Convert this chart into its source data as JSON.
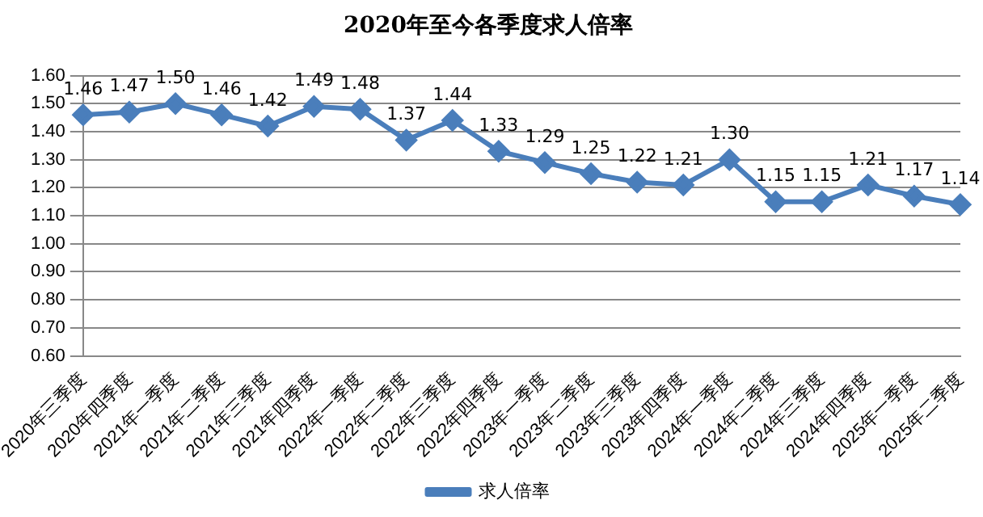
{
  "chart_data": {
    "type": "line",
    "title": "2020年至今各季度求人倍率",
    "categories": [
      "2020年三季度",
      "2020年四季度",
      "2021年一季度",
      "2021年二季度",
      "2021年三季度",
      "2021年四季度",
      "2022年一季度",
      "2022年二季度",
      "2022年三季度",
      "2022年四季度",
      "2023年一季度",
      "2023年二季度",
      "2023年三季度",
      "2023年四季度",
      "2024年一季度",
      "2024年二季度",
      "2024年三季度",
      "2024年四季度",
      "2025年一季度",
      "2025年二季度"
    ],
    "series": [
      {
        "name": "求人倍率",
        "color": "#4a7ebb",
        "values": [
          1.46,
          1.47,
          1.5,
          1.46,
          1.42,
          1.49,
          1.48,
          1.37,
          1.44,
          1.33,
          1.29,
          1.25,
          1.22,
          1.21,
          1.3,
          1.15,
          1.15,
          1.21,
          1.17,
          1.14
        ],
        "value_labels": [
          "1.46",
          "1.47",
          "1.50",
          "1.46",
          "1.42",
          "1.49",
          "1.48",
          "1.37",
          "1.44",
          "1.33",
          "1.29",
          "1.25",
          "1.22",
          "1.21",
          "1.30",
          "1.15",
          "1.15",
          "1.21",
          "1.17",
          "1.14"
        ]
      }
    ],
    "ylim": [
      0.6,
      1.6
    ],
    "yticks": [
      {
        "value": 0.6,
        "label": "0.60"
      },
      {
        "value": 0.7,
        "label": "0.70"
      },
      {
        "value": 0.8,
        "label": "0.80"
      },
      {
        "value": 0.9,
        "label": "0.90"
      },
      {
        "value": 1.0,
        "label": "1.00"
      },
      {
        "value": 1.1,
        "label": "1.10"
      },
      {
        "value": 1.2,
        "label": "1.20"
      },
      {
        "value": 1.3,
        "label": "1.30"
      },
      {
        "value": 1.4,
        "label": "1.40"
      },
      {
        "value": 1.5,
        "label": "1.50"
      },
      {
        "value": 1.6,
        "label": "1.60"
      }
    ],
    "grid": "y",
    "legend": "bottom",
    "marker": "diamond",
    "line_style": "solid"
  }
}
